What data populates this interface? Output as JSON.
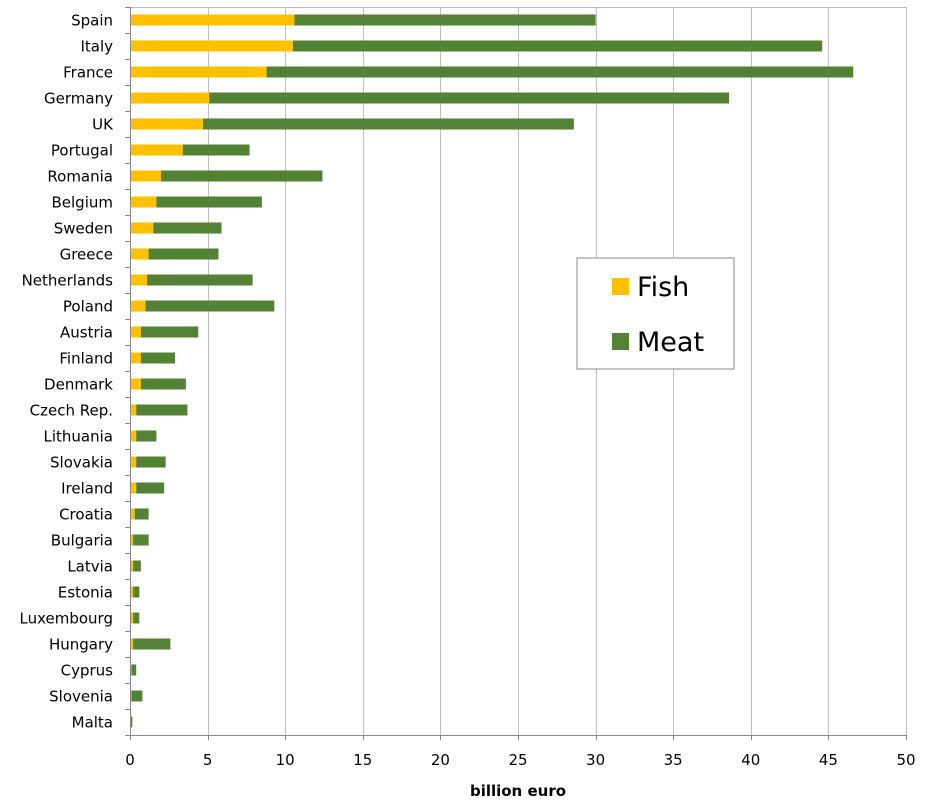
{
  "chart_data": {
    "type": "bar",
    "orientation": "horizontal",
    "stacked": true,
    "title": "",
    "xlabel": "billion euro",
    "ylabel": "",
    "xlim": [
      0,
      50
    ],
    "x_ticks": [
      0,
      5,
      10,
      15,
      20,
      25,
      30,
      35,
      40,
      45,
      50
    ],
    "grid": true,
    "legend_position": "center-right",
    "categories": [
      "Spain",
      "Italy",
      "France",
      "Germany",
      "UK",
      "Portugal",
      "Romania",
      "Belgium",
      "Sweden",
      "Greece",
      "Netherlands",
      "Poland",
      "Austria",
      "Finland",
      "Denmark",
      "Czech Rep.",
      "Lithuania",
      "Slovakia",
      "Ireland",
      "Croatia",
      "Bulgaria",
      "Latvia",
      "Estonia",
      "Luxembourg",
      "Hungary",
      "Cyprus",
      "Slovenia",
      "Malta"
    ],
    "series": [
      {
        "name": "Fish",
        "color": "#FFC000",
        "values": [
          10.6,
          10.5,
          8.8,
          5.1,
          4.7,
          3.4,
          2.0,
          1.7,
          1.5,
          1.2,
          1.1,
          1.0,
          0.7,
          0.7,
          0.7,
          0.4,
          0.4,
          0.4,
          0.4,
          0.3,
          0.2,
          0.2,
          0.2,
          0.2,
          0.2,
          0.1,
          0.1,
          0.05
        ]
      },
      {
        "name": "Meat",
        "color": "#548235",
        "values": [
          19.4,
          34.1,
          37.8,
          33.5,
          23.9,
          4.3,
          10.4,
          6.8,
          4.4,
          4.5,
          6.8,
          8.3,
          3.7,
          2.2,
          2.9,
          3.3,
          1.3,
          1.9,
          1.8,
          0.9,
          1.0,
          0.5,
          0.4,
          0.4,
          2.4,
          0.3,
          0.7,
          0.1
        ]
      }
    ]
  }
}
